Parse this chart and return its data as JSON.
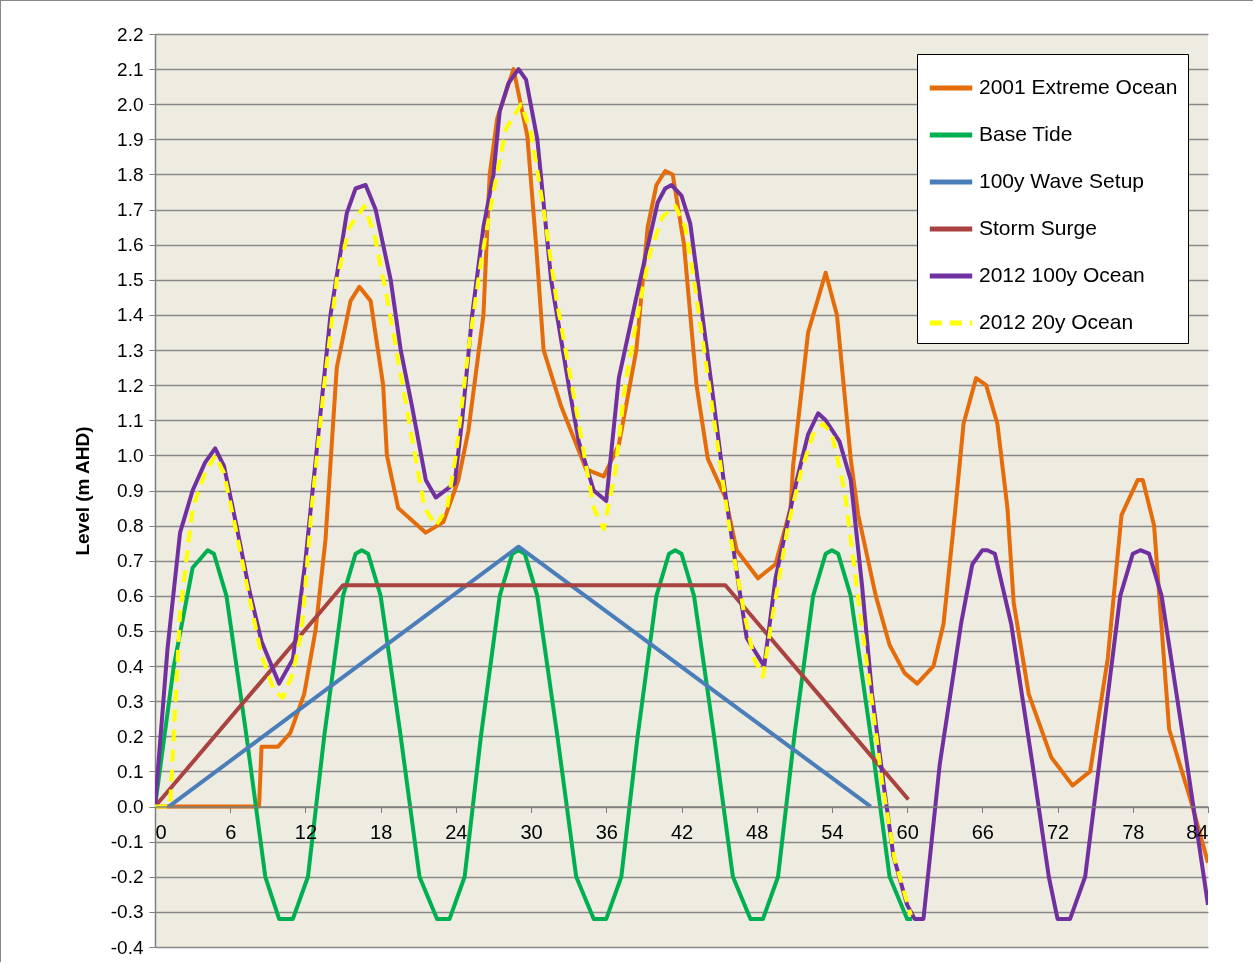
{
  "chart_data": {
    "type": "line",
    "ylabel": "Level (m AHD)",
    "xlim": [
      0,
      84
    ],
    "ylim": [
      -0.4,
      2.2
    ],
    "xticks": [
      0,
      6,
      12,
      18,
      24,
      30,
      36,
      42,
      48,
      54,
      60,
      66,
      72,
      78,
      84
    ],
    "yticks": [
      -0.4,
      -0.3,
      -0.2,
      -0.1,
      {
        "value": 0,
        "label": "0.0"
      },
      0.1,
      0.2,
      0.3,
      0.4,
      0.5,
      0.6,
      0.7,
      0.8,
      0.9,
      {
        "value": 1,
        "label": "1.0"
      },
      1.1,
      1.2,
      1.3,
      1.4,
      1.5,
      1.6,
      1.7,
      1.8,
      1.9,
      {
        "value": 2,
        "label": "2.0"
      },
      2.1,
      2.2
    ],
    "grid": "y",
    "legend": "top right",
    "series": [
      {
        "name": "2001 Extreme Ocean",
        "color": "#e46c0a",
        "x": [
          0,
          8.3,
          8.5,
          9.8,
          10.8,
          11.9,
          12.8,
          13.6,
          14.5,
          15.6,
          16.3,
          17.2,
          18.2,
          18.5,
          19.4,
          21.6,
          23,
          24.2,
          25,
          26.2,
          26.7,
          27.3,
          28.6,
          29.7,
          30.4,
          31,
          32.4,
          34.4,
          35.8,
          37,
          38.4,
          39.3,
          40,
          40.7,
          41.3,
          42.2,
          43.2,
          44.1,
          45.5,
          46.4,
          48.1,
          49.5,
          50.7,
          50.9,
          52.1,
          53.5,
          54.4,
          55.5,
          56.1,
          57.5,
          58.6,
          59.8,
          60.8,
          62.1,
          62.9,
          63.8,
          64.5,
          65.5,
          66.3,
          67.2,
          68,
          68.5,
          69.7,
          71.5,
          73.2,
          74.6,
          76,
          77.1,
          78.4,
          78.8,
          79.7,
          80.9,
          82.6,
          84
        ],
        "values": [
          0,
          0,
          0.17,
          0.17,
          0.21,
          0.32,
          0.5,
          0.76,
          1.25,
          1.44,
          1.48,
          1.44,
          1.2,
          1,
          0.85,
          0.78,
          0.81,
          0.93,
          1.07,
          1.4,
          1.8,
          1.96,
          2.1,
          1.91,
          1.6,
          1.3,
          1.14,
          0.96,
          0.94,
          1.03,
          1.3,
          1.65,
          1.77,
          1.81,
          1.8,
          1.6,
          1.2,
          0.99,
          0.88,
          0.73,
          0.65,
          0.69,
          0.85,
          0.97,
          1.35,
          1.52,
          1.4,
          0.99,
          0.83,
          0.6,
          0.46,
          0.38,
          0.35,
          0.4,
          0.52,
          0.83,
          1.09,
          1.22,
          1.2,
          1.09,
          0.85,
          0.58,
          0.32,
          0.14,
          0.06,
          0.1,
          0.42,
          0.83,
          0.93,
          0.93,
          0.8,
          0.22,
          0.02,
          -0.16
        ]
      },
      {
        "name": "Base Tide",
        "color": "#00b050",
        "x": [
          0,
          1.5,
          3,
          4.2,
          4.7,
          5.7,
          7.3,
          8.8,
          9.9,
          11,
          12.2,
          13.5,
          15,
          16,
          16.5,
          17,
          18,
          19.6,
          21.1,
          22.5,
          23.5,
          24.7,
          26,
          27.5,
          28.5,
          29,
          29.5,
          30.5,
          32.1,
          33.6,
          35,
          36,
          37.2,
          38.5,
          40,
          41,
          41.5,
          42,
          43,
          44.6,
          46.1,
          47.5,
          48.5,
          49.7,
          51,
          52.5,
          53.5,
          54,
          54.5,
          55.5,
          57.1,
          58.6,
          60,
          60.4
        ],
        "values": [
          0,
          0.4,
          0.68,
          0.73,
          0.72,
          0.6,
          0.2,
          -0.2,
          -0.32,
          -0.32,
          -0.2,
          0.2,
          0.6,
          0.72,
          0.73,
          0.72,
          0.6,
          0.2,
          -0.2,
          -0.32,
          -0.32,
          -0.2,
          0.2,
          0.6,
          0.72,
          0.73,
          0.72,
          0.6,
          0.2,
          -0.2,
          -0.32,
          -0.32,
          -0.2,
          0.2,
          0.6,
          0.72,
          0.73,
          0.72,
          0.6,
          0.2,
          -0.2,
          -0.32,
          -0.32,
          -0.2,
          0.2,
          0.6,
          0.72,
          0.73,
          0.72,
          0.6,
          0.2,
          -0.2,
          -0.32,
          -0.32
        ]
      },
      {
        "name": "100y Wave Setup",
        "color": "#4a7ebb",
        "x": [
          1.1,
          29,
          57.1
        ],
        "values": [
          0,
          0.74,
          0
        ]
      },
      {
        "name": "Storm Surge",
        "color": "#a84340",
        "x": [
          0,
          15,
          45.5,
          60.1
        ],
        "values": [
          0,
          0.63,
          0.63,
          0.02
        ]
      },
      {
        "name": "2012 100y Ocean",
        "color": "#7030a0",
        "x": [
          0,
          1,
          2,
          3,
          4,
          4.8,
          5.5,
          6.5,
          7.5,
          8.5,
          9.9,
          11,
          12,
          13,
          14,
          15.3,
          16,
          16.8,
          17.6,
          18.8,
          19.6,
          20.5,
          21.6,
          22.4,
          23.9,
          24.5,
          25.3,
          26.2,
          27,
          27.5,
          28.2,
          29,
          29.6,
          30.5,
          31.6,
          33,
          33.8,
          35,
          36,
          37,
          38.7,
          40.1,
          40.7,
          41.2,
          42,
          42.7,
          44.4,
          45.5,
          46.4,
          47.2,
          48.6,
          49.5,
          51.2,
          52.1,
          52.9,
          53.5,
          54.6,
          55.5,
          56.4,
          57.2,
          58.1,
          58.9,
          60,
          60.6,
          61.3,
          62.6,
          64.3,
          65.2,
          66,
          66.4,
          67,
          68.3,
          70,
          71.3,
          72,
          73,
          74.2,
          75.6,
          77,
          78,
          78.6,
          79.3,
          80.3,
          82,
          84
        ],
        "values": [
          0,
          0.45,
          0.78,
          0.9,
          0.98,
          1.02,
          0.97,
          0.8,
          0.62,
          0.47,
          0.35,
          0.42,
          0.7,
          1.05,
          1.4,
          1.69,
          1.76,
          1.77,
          1.7,
          1.5,
          1.3,
          1.14,
          0.93,
          0.88,
          0.92,
          1.1,
          1.4,
          1.65,
          1.8,
          1.98,
          2.06,
          2.1,
          2.07,
          1.9,
          1.5,
          1.2,
          1.04,
          0.9,
          0.87,
          1.22,
          1.5,
          1.72,
          1.76,
          1.77,
          1.74,
          1.66,
          1.2,
          0.89,
          0.67,
          0.48,
          0.4,
          0.65,
          0.93,
          1.06,
          1.12,
          1.1,
          1.04,
          0.93,
          0.63,
          0.32,
          0.07,
          -0.14,
          -0.28,
          -0.32,
          -0.32,
          0.12,
          0.52,
          0.69,
          0.73,
          0.73,
          0.72,
          0.52,
          0.12,
          -0.2,
          -0.32,
          -0.32,
          -0.2,
          0.2,
          0.6,
          0.72,
          0.73,
          0.72,
          0.6,
          0.2,
          -0.28
        ]
      },
      {
        "name": "2012 20y Ocean",
        "color": "#ffff00",
        "line_style": "dashed",
        "x": [
          0,
          1.2,
          2,
          3,
          4,
          4.8,
          5.5,
          6.5,
          7.5,
          8.5,
          9.5,
          10.2,
          11,
          11.7,
          12.5,
          13.5,
          14.5,
          15.5,
          16.7,
          17.5,
          18.5,
          19.5,
          20.5,
          21.5,
          22.4,
          23.3,
          24,
          25,
          26,
          27,
          28,
          29.2,
          30,
          31,
          32,
          33,
          34,
          35,
          35.8,
          36.7,
          37.5,
          38.5,
          39.5,
          40.5,
          41.5,
          42.3,
          43,
          44,
          45,
          46,
          47,
          47.8,
          48.5,
          49.3,
          50.5,
          51.5,
          52.5,
          53.3,
          54,
          55,
          56,
          57,
          58,
          59,
          60.3
        ],
        "values": [
          0,
          0,
          0.55,
          0.85,
          0.95,
          1,
          0.95,
          0.78,
          0.6,
          0.43,
          0.33,
          0.31,
          0.38,
          0.5,
          0.85,
          1.2,
          1.5,
          1.65,
          1.71,
          1.63,
          1.45,
          1.25,
          1.05,
          0.85,
          0.8,
          0.85,
          1,
          1.3,
          1.55,
          1.75,
          1.93,
          2,
          1.92,
          1.7,
          1.45,
          1.25,
          1.05,
          0.85,
          0.79,
          0.95,
          1.2,
          1.4,
          1.58,
          1.68,
          1.71,
          1.65,
          1.5,
          1.25,
          1,
          0.75,
          0.55,
          0.42,
          0.37,
          0.55,
          0.8,
          0.95,
          1.06,
          1.09,
          1.06,
          0.9,
          0.62,
          0.35,
          0.07,
          -0.15,
          -0.31
        ]
      }
    ]
  }
}
